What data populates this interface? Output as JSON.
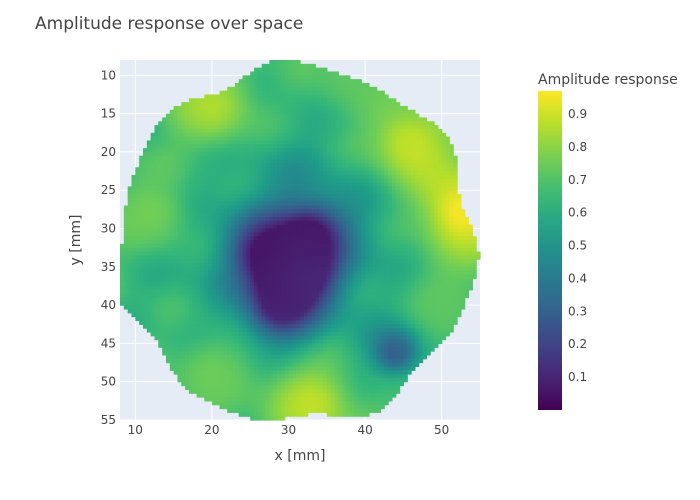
{
  "chart_data": {
    "type": "heatmap",
    "title": "Amplitude response over space",
    "xlabel": "x [mm]",
    "ylabel": "y [mm]",
    "colorbar_title": "Amplitude response",
    "colorscale": "viridis",
    "xlim": [
      8,
      55
    ],
    "ylim": [
      55,
      8
    ],
    "y_reversed": true,
    "grid": true,
    "x_ticks": [
      10,
      20,
      30,
      40,
      50
    ],
    "y_ticks": [
      10,
      15,
      20,
      25,
      30,
      35,
      40,
      45,
      50,
      55
    ],
    "colorbar_ticks": [
      0.1,
      0.2,
      0.3,
      0.4,
      0.5,
      0.6,
      0.7,
      0.8,
      0.9
    ],
    "value_range": [
      0,
      0.97
    ],
    "region": {
      "shape": "circle",
      "center": [
        31,
        32
      ],
      "radius": 23.2
    },
    "low_regions": [
      {
        "center": [
          27,
          33
        ],
        "value": 0.05
      },
      {
        "center": [
          33,
          31
        ],
        "value": 0.06
      },
      {
        "center": [
          29,
          40
        ],
        "value": 0.07
      },
      {
        "center": [
          32,
          36
        ],
        "value": 0.12
      }
    ],
    "high_regions": [
      {
        "center": [
          46,
          19
        ],
        "value": 0.88
      },
      {
        "center": [
          53,
          28
        ],
        "value": 0.96
      },
      {
        "center": [
          33,
          53
        ],
        "value": 0.88
      },
      {
        "center": [
          20,
          14
        ],
        "value": 0.85
      },
      {
        "center": [
          12,
          28
        ],
        "value": 0.76
      },
      {
        "center": [
          38,
          10
        ],
        "value": 0.72
      },
      {
        "center": [
          20,
          49
        ],
        "value": 0.75
      },
      {
        "center": [
          50,
          40
        ],
        "value": 0.72
      }
    ],
    "dark_edge_regions": [
      {
        "center": [
          44,
          46
        ],
        "value": 0.25
      }
    ]
  }
}
